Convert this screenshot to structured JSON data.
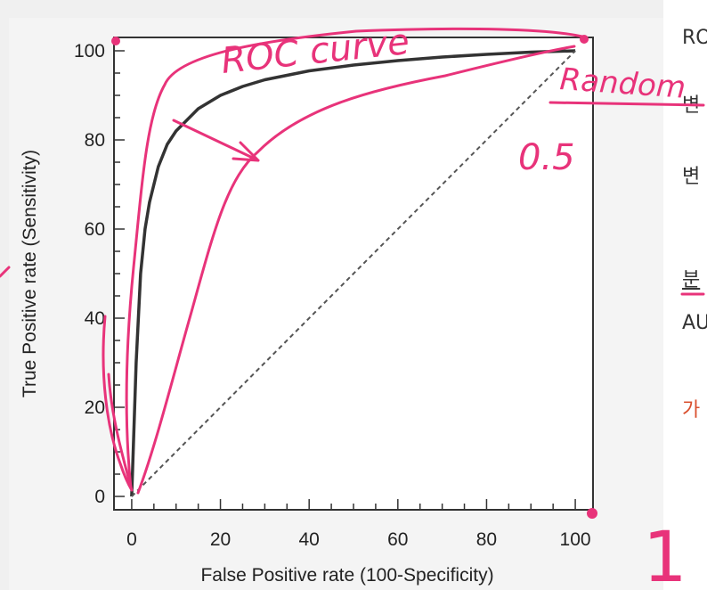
{
  "chart_data": {
    "type": "line",
    "xlabel": "False Positive rate (100-Specificity)",
    "ylabel": "True Positive rate (Sensitivity)",
    "xlim": [
      -4,
      104
    ],
    "ylim": [
      -3,
      103
    ],
    "x_ticks": [
      0,
      20,
      40,
      60,
      80,
      100
    ],
    "y_ticks": [
      0,
      20,
      40,
      60,
      80,
      100
    ],
    "series": [
      {
        "style": "solid",
        "color": "#333333",
        "x": [
          0,
          0.5,
          1,
          2,
          3,
          4,
          6,
          8,
          10,
          15,
          20,
          25,
          30,
          40,
          50,
          60,
          70,
          80,
          90,
          100
        ],
        "y": [
          0,
          15,
          30,
          50,
          60,
          66,
          74,
          79,
          82,
          87,
          90,
          92,
          93.5,
          95.5,
          96.8,
          97.8,
          98.6,
          99.2,
          99.7,
          100
        ]
      },
      {
        "style": "dashed",
        "color": "#555555",
        "x": [
          0,
          100
        ],
        "y": [
          0,
          100
        ]
      }
    ],
    "annotations": [
      {
        "text": "ROC curve",
        "color": "#e8337a"
      },
      {
        "text": "Random",
        "color": "#e8337a"
      },
      {
        "text": "0.5",
        "color": "#e8337a"
      },
      {
        "text": "1",
        "color": "#e8337a"
      }
    ]
  },
  "side_text": {
    "line1": "RO",
    "line2": "변",
    "line3": "변",
    "line4": "분",
    "line5": "AU",
    "line6": "가"
  },
  "colors": {
    "ink": "#e8337a",
    "accent_text": "#d9502f",
    "curve": "#333333"
  }
}
